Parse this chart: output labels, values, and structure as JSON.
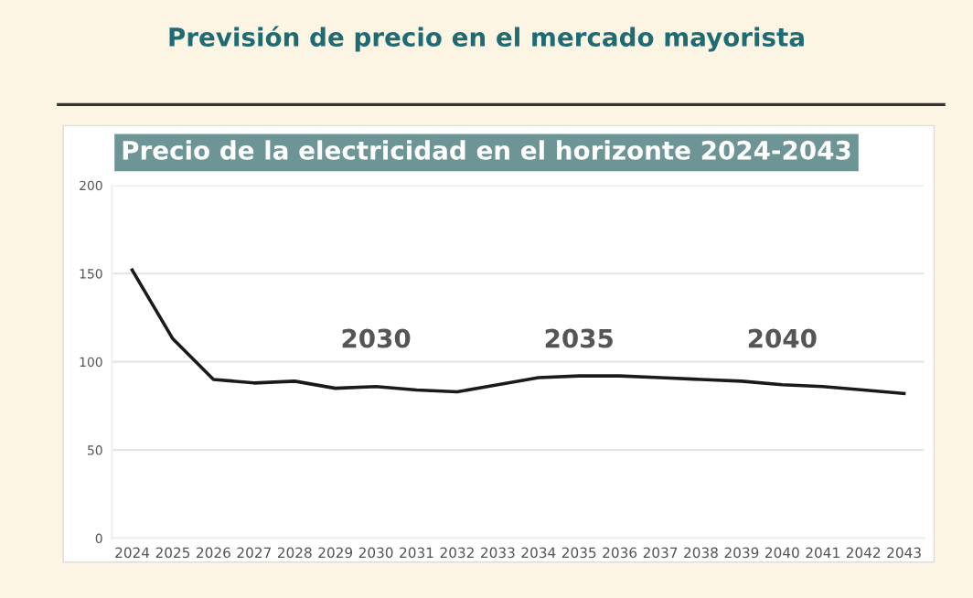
{
  "chart_data": {
    "type": "line",
    "title": "Previsión de precio en el mercado mayorista",
    "subtitle": "Precio de la electricidad en el horizonte 2024-2043",
    "categories": [
      "2024",
      "2025",
      "2026",
      "2027",
      "2028",
      "2029",
      "2030",
      "2031",
      "2032",
      "2033",
      "2034",
      "2035",
      "2036",
      "2037",
      "2038",
      "2039",
      "2040",
      "2041",
      "2042",
      "2043"
    ],
    "series": [
      {
        "color": "#1a1a1a",
        "values": [
          152,
          113,
          90,
          88,
          89,
          85,
          86,
          84,
          83,
          87,
          91,
          92,
          92,
          91,
          90,
          89,
          87,
          86,
          84,
          82
        ]
      }
    ],
    "ylim": [
      0,
      200
    ],
    "yticks": [
      0,
      50,
      100,
      150,
      200
    ],
    "grid": "y",
    "legend": false,
    "marker": "none",
    "line_style": "solid",
    "annotations": [
      "2030",
      "2035",
      "2040"
    ]
  }
}
